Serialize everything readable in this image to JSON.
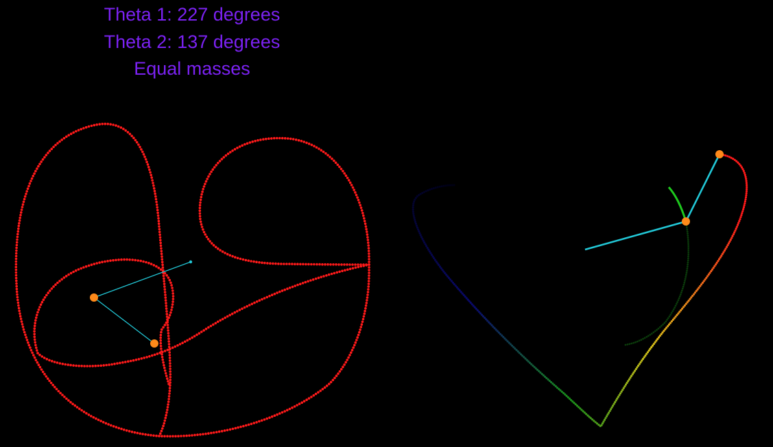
{
  "header": {
    "theta1": "Theta 1: 227 degrees",
    "theta2": "Theta 2: 137 degrees",
    "mass_note": "Equal masses"
  },
  "colors": {
    "background": "#000000",
    "caption": "#7b22f2",
    "rod": "#22c7d6",
    "bob": "#ff8a1a",
    "trail_left": "#ff1a1a",
    "trail_right_head": "#ff1a1a",
    "trail_right_mid": "#d8c21a",
    "trail_right_low": "#1a8f1a",
    "trail_right_tail": "#0a0a6e",
    "second_trail": "#1ec81e"
  }
}
